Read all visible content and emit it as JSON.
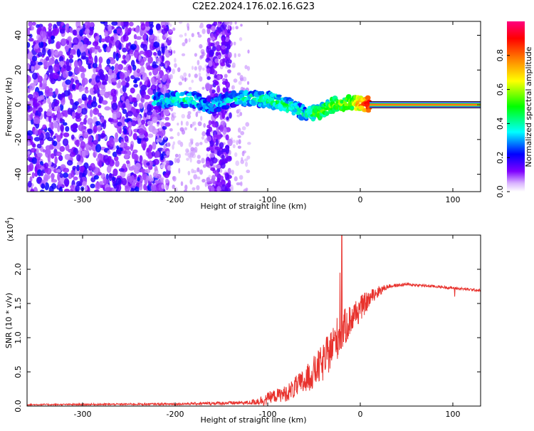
{
  "title": "C2E2.2024.176.02.16.G23",
  "chart_data": [
    {
      "type": "heatmap",
      "xlabel": "Height of straight line (km)",
      "ylabel": "Frequency (Hz)",
      "xlim": [
        -360,
        130
      ],
      "ylim": [
        -50,
        48
      ],
      "xticks": [
        -300,
        -200,
        -100,
        0,
        100
      ],
      "yticks": [
        -40,
        -20,
        0,
        20,
        40
      ],
      "colorbar": {
        "label": "Normalized spectral amplitude",
        "range": [
          0.0,
          1.0
        ],
        "ticks": [
          0.0,
          0.2,
          0.4,
          0.6,
          0.8
        ],
        "colormap": [
          "#ffffff",
          "#7f00ff",
          "#0000ff",
          "#00ffff",
          "#00ff00",
          "#ffff00",
          "#ff7f00",
          "#ff0000",
          "#ff007f"
        ]
      },
      "features": {
        "noise_region_km": [
          -360,
          -220
        ],
        "noise_bands_km": [
          [
            -165,
            -140
          ]
        ],
        "signal_track": [
          {
            "x": -220,
            "y": 2,
            "amp": 0.35
          },
          {
            "x": -200,
            "y": 3,
            "amp": 0.4
          },
          {
            "x": -180,
            "y": 3,
            "amp": 0.4
          },
          {
            "x": -165,
            "y": -1,
            "amp": 0.35
          },
          {
            "x": -140,
            "y": 3,
            "amp": 0.35
          },
          {
            "x": -120,
            "y": 4,
            "amp": 0.4
          },
          {
            "x": -100,
            "y": 3,
            "amp": 0.45
          },
          {
            "x": -80,
            "y": 0,
            "amp": 0.45
          },
          {
            "x": -60,
            "y": -5,
            "amp": 0.4
          },
          {
            "x": -45,
            "y": -5,
            "amp": 0.5
          },
          {
            "x": -30,
            "y": 0,
            "amp": 0.55
          },
          {
            "x": -10,
            "y": 1,
            "amp": 0.6
          },
          {
            "x": 10,
            "y": 0,
            "amp": 0.95
          },
          {
            "x": 130,
            "y": 0,
            "amp": 0.95
          }
        ]
      }
    },
    {
      "type": "line",
      "xlabel": "Height of straight line (km)",
      "ylabel": "SNR (10 * v/v)",
      "multiplier_label": "(x10",
      "multiplier_exp": "4",
      "multiplier_close": ")",
      "xlim": [
        -360,
        130
      ],
      "ylim": [
        0,
        2.5
      ],
      "xticks": [
        -300,
        -200,
        -100,
        0,
        100
      ],
      "yticks": [
        0.0,
        0.5,
        1.0,
        1.5,
        2.0
      ],
      "color": "#e8322d",
      "envelope": [
        {
          "x": -360,
          "y": 0.02,
          "noise": 0.01
        },
        {
          "x": -200,
          "y": 0.03,
          "noise": 0.015
        },
        {
          "x": -120,
          "y": 0.05,
          "noise": 0.03
        },
        {
          "x": -100,
          "y": 0.1,
          "noise": 0.1
        },
        {
          "x": -80,
          "y": 0.15,
          "noise": 0.15
        },
        {
          "x": -60,
          "y": 0.3,
          "noise": 0.25
        },
        {
          "x": -40,
          "y": 0.55,
          "noise": 0.35
        },
        {
          "x": -25,
          "y": 0.9,
          "noise": 0.4
        },
        {
          "x": -10,
          "y": 1.2,
          "noise": 0.3
        },
        {
          "x": 5,
          "y": 1.45,
          "noise": 0.2
        },
        {
          "x": 20,
          "y": 1.68,
          "noise": 0.08
        },
        {
          "x": 30,
          "y": 1.75,
          "noise": 0.03
        },
        {
          "x": 50,
          "y": 1.78,
          "noise": 0.02
        },
        {
          "x": 80,
          "y": 1.75,
          "noise": 0.02
        },
        {
          "x": 130,
          "y": 1.69,
          "noise": 0.02
        }
      ],
      "spikes": [
        {
          "x": -20,
          "y": 2.5
        },
        {
          "x": -22,
          "y": 1.95
        },
        {
          "x": 102,
          "y": 1.6
        }
      ]
    }
  ]
}
